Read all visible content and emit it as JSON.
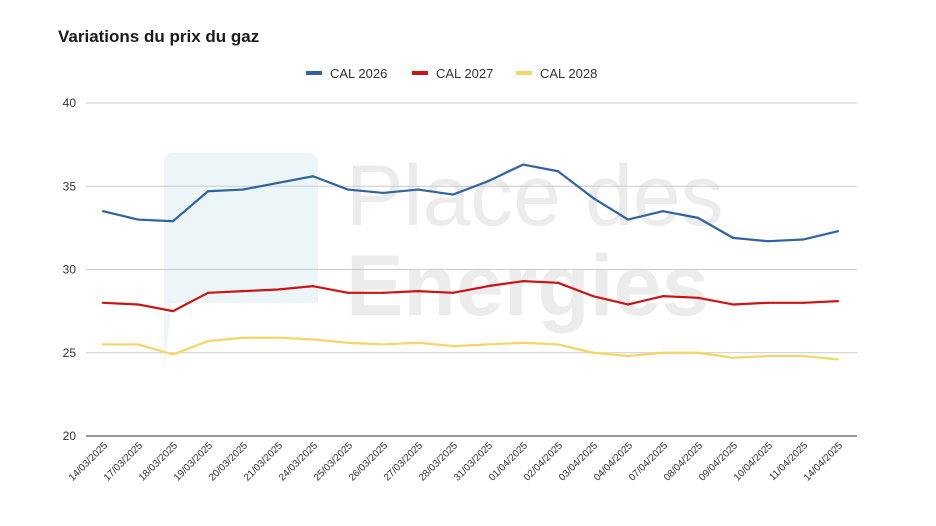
{
  "chart_data": {
    "type": "line",
    "title": "Variations du prix du gaz",
    "xlabel": "",
    "ylabel": "",
    "ylim": [
      20,
      40
    ],
    "yticks": [
      20,
      25,
      30,
      35,
      40
    ],
    "grid": true,
    "legend_position": "top",
    "watermark_text": [
      "Place des",
      "Energies"
    ],
    "categories": [
      "14/03/2025",
      "17/03/2025",
      "18/03/2025",
      "19/03/2025",
      "20/03/2025",
      "21/03/2025",
      "24/03/2025",
      "25/03/2025",
      "26/03/2025",
      "27/03/2025",
      "28/03/2025",
      "31/03/2025",
      "01/04/2025",
      "02/04/2025",
      "03/04/2025",
      "04/04/2025",
      "07/04/2025",
      "08/04/2025",
      "09/04/2025",
      "10/04/2025",
      "11/04/2025",
      "14/04/2025"
    ],
    "series": [
      {
        "name": "CAL 2026",
        "color": "#2f64a3",
        "values": [
          33.5,
          33.0,
          32.9,
          34.7,
          34.8,
          35.2,
          35.6,
          34.8,
          34.6,
          34.8,
          34.5,
          35.3,
          36.3,
          35.9,
          34.3,
          33.0,
          33.5,
          33.1,
          31.9,
          31.7,
          31.8,
          32.3
        ]
      },
      {
        "name": "CAL 2027",
        "color": "#cc1414",
        "values": [
          28.0,
          27.9,
          27.5,
          28.6,
          28.7,
          28.8,
          29.0,
          28.6,
          28.6,
          28.7,
          28.6,
          29.0,
          29.3,
          29.2,
          28.4,
          27.9,
          28.4,
          28.3,
          27.9,
          28.0,
          28.0,
          28.1
        ]
      },
      {
        "name": "CAL 2028",
        "color": "#f6d564",
        "values": [
          25.5,
          25.5,
          24.9,
          25.7,
          25.9,
          25.9,
          25.8,
          25.6,
          25.5,
          25.6,
          25.4,
          25.5,
          25.6,
          25.5,
          25.0,
          24.8,
          25.0,
          25.0,
          24.7,
          24.8,
          24.8,
          24.6
        ]
      }
    ]
  }
}
